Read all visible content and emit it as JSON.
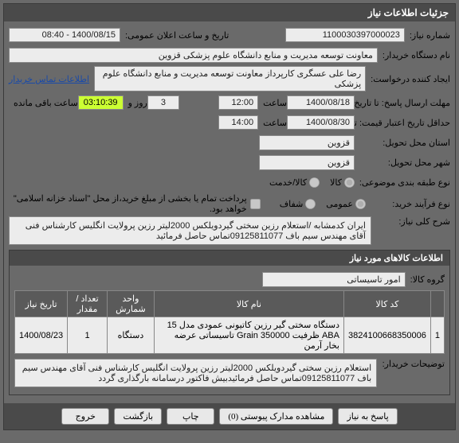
{
  "panel_title": "جزئیات اطلاعات نیاز",
  "fields": {
    "need_no_lbl": "شماره نیاز:",
    "need_no": "1100030397000023",
    "announce_lbl": "تاریخ و ساعت اعلان عمومی:",
    "announce": "1400/08/15 - 08:40",
    "buyer_name_lbl": "نام دستگاه خریدار:",
    "buyer_name": "معاونت توسعه مدیریت و منابع دانشگاه علوم پزشکی قزوین",
    "req_creator_lbl": "ایجاد کننده درخواست:",
    "req_creator": "رضا علی عسگری کارپرداز معاونت توسعه مدیریت و منابع دانشگاه علوم پزشکی",
    "buyer_contact": "اطلاعات تماس خریدار",
    "deadline_lbl": "مهلت ارسال پاسخ: تا تاریخ:",
    "deadline_date": "1400/08/18",
    "time_lbl": "ساعت",
    "deadline_time": "12:00",
    "days": "3",
    "days_lbl": "روز و",
    "countdown": "03:10:39",
    "remain_lbl": "ساعت باقی مانده",
    "validity_lbl": "حداقل تاریخ اعتبار قیمت: تا تاریخ:",
    "validity_date": "1400/08/30",
    "validity_time": "14:00",
    "delivery_state_lbl": "استان محل تحویل:",
    "delivery_state": "قزوین",
    "delivery_city_lbl": "شهر محل تحویل:",
    "delivery_city": "قزوین",
    "nature_lbl": "نوع طبقه بندی موضوعی:",
    "nature_opts": [
      "کالا",
      "کالا/خدمت"
    ],
    "purchase_type_lbl": "نوع فرآیند خرید:",
    "purchase_opts": [
      "عمومی",
      "شفاف"
    ],
    "chk_text": "پرداخت تمام یا بخشی از مبلغ خرید،از محل \"اسناد خزانه اسلامی\" خواهد بود.",
    "keyword_lbl": "شرح کلی نیاز:",
    "keyword_text": "ایران کدمشابه /استعلام رزین سختی گیردویلکس 2000لیتر رزین پرولایت انگلیس کارشناس فنی آقای مهندس سیم باف 09125811077تماس حاصل فرمائید"
  },
  "items_section": {
    "title": "اطلاعات کالاهای مورد نیاز",
    "group_lbl": "گروه کالا:",
    "group_val": "امور تاسیساتی",
    "cols": [
      "",
      "کد کالا",
      "نام کالا",
      "واحد شمارش",
      "تعداد / مقدار",
      "تاریخ نیاز"
    ],
    "rows": [
      [
        "1",
        "3824100668350006",
        "دستگاه سختی گیر رزین کاتیونی عمودی مدل 15 ABA ظرفیت Grain 350000 تاسیساتی عرضه بخار آرمن",
        "دستگاه",
        "1",
        "1400/08/23"
      ]
    ],
    "desc_lbl": "توضیحات خریدار:",
    "desc_text": "استعلام رزین سختی گیردویلکس 2000لیتر رزین پرولایت انگلیس کارشناس فنی آقای مهندس سیم باف 09125811077تماس حاصل فرمائیدبیش فاکتور درسامانه  بارگذاری گردد"
  },
  "buttons": {
    "respond": "پاسخ به نیاز",
    "attachments": "مشاهده مدارک پیوستی (0)",
    "print": "چاپ",
    "back": "بازگشت",
    "exit": "خروج"
  }
}
